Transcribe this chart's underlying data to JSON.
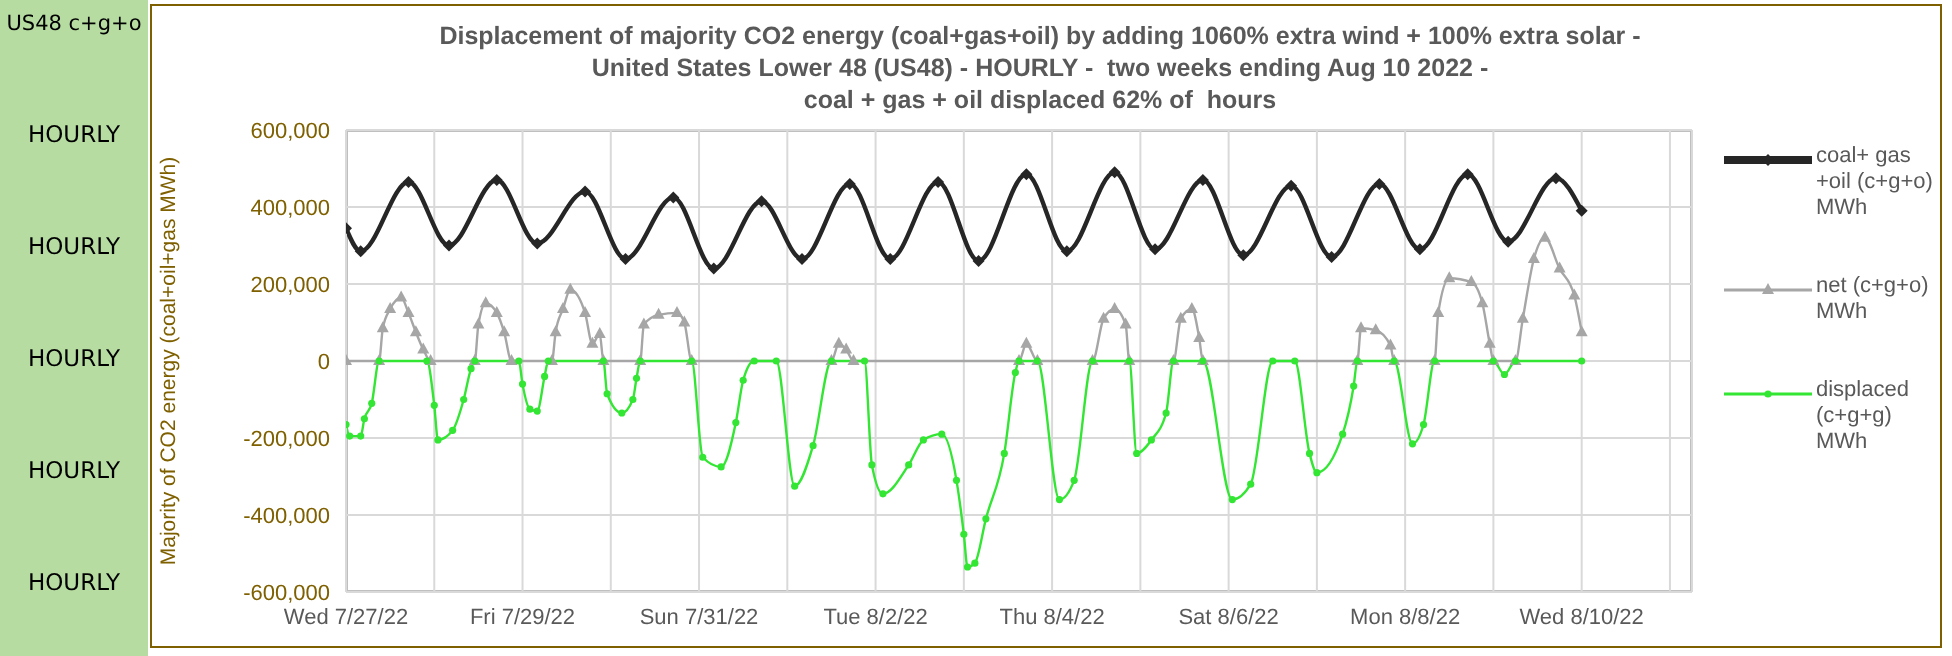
{
  "chart_data": {
    "type": "line",
    "title": "Displacement of majority CO2 energy (coal+gas+oil) by adding 1060% extra wind + 100% extra solar -\nUnited States Lower 48 (US48) - HOURLY -  two weeks ending Aug 10 2022 -\ncoal + gas + oil displaced 62% of  hours",
    "ylabel": "Majority of CO2 energy (coal+oil+gas MWh)",
    "annotations": [
      "US48 c+g+o",
      "HOURLY",
      "HOURLY",
      "HOURLY",
      "HOURLY",
      "HOURLY"
    ],
    "xlim": [
      "2022-07-27",
      "2022-08-11T06:00"
    ],
    "xticks": [
      {
        "value": "2022-07-27",
        "label": "Wed 7/27/22"
      },
      {
        "value": "2022-07-28",
        "label": null
      },
      {
        "value": "2022-07-29",
        "label": "Fri 7/29/22"
      },
      {
        "value": "2022-07-30",
        "label": null
      },
      {
        "value": "2022-07-31",
        "label": "Sun 7/31/22"
      },
      {
        "value": "2022-08-01",
        "label": null
      },
      {
        "value": "2022-08-02",
        "label": "Tue 8/2/22"
      },
      {
        "value": "2022-08-03",
        "label": null
      },
      {
        "value": "2022-08-04",
        "label": "Thu 8/4/22"
      },
      {
        "value": "2022-08-05",
        "label": null
      },
      {
        "value": "2022-08-06",
        "label": "Sat 8/6/22"
      },
      {
        "value": "2022-08-07",
        "label": null
      },
      {
        "value": "2022-08-08",
        "label": "Mon 8/8/22"
      },
      {
        "value": "2022-08-09",
        "label": null
      },
      {
        "value": "2022-08-10",
        "label": "Wed 8/10/22"
      },
      {
        "value": "2022-08-11",
        "label": null
      }
    ],
    "ylim": [
      -600000,
      600000
    ],
    "yticks": [
      {
        "value": -600000,
        "label": "-600,000"
      },
      {
        "value": -400000,
        "label": "-400,000"
      },
      {
        "value": -200000,
        "label": "-200,000"
      },
      0,
      {
        "value": 200000,
        "label": "200,000"
      },
      {
        "value": 400000,
        "label": "400,000"
      },
      {
        "value": 600000,
        "label": "600,000"
      }
    ],
    "grid": true,
    "legend": "right",
    "series": [
      {
        "name": "coal+ gas +oil (c+g+o) MWh",
        "color": "#262626",
        "marker": "diamond",
        "x": [
          "2022-07-27T00:00",
          "2022-07-27T04:00",
          "2022-07-27T17:00",
          "2022-07-28T04:00",
          "2022-07-28T17:00",
          "2022-07-29T04:00",
          "2022-07-29T17:00",
          "2022-07-30T04:00",
          "2022-07-30T17:00",
          "2022-07-31T04:00",
          "2022-07-31T17:00",
          "2022-08-01T04:00",
          "2022-08-01T17:00",
          "2022-08-02T04:00",
          "2022-08-02T17:00",
          "2022-08-03T04:00",
          "2022-08-03T17:00",
          "2022-08-04T04:00",
          "2022-08-04T17:00",
          "2022-08-05T04:00",
          "2022-08-05T17:00",
          "2022-08-06T04:00",
          "2022-08-06T17:00",
          "2022-08-07T04:00",
          "2022-08-07T17:00",
          "2022-08-08T04:00",
          "2022-08-08T17:00",
          "2022-08-09T04:00",
          "2022-08-09T17:00",
          "2022-08-10T00:00"
        ],
        "values": [
          345000,
          285000,
          465000,
          300000,
          470000,
          305000,
          440000,
          265000,
          425000,
          240000,
          415000,
          265000,
          460000,
          265000,
          465000,
          260000,
          485000,
          285000,
          490000,
          290000,
          470000,
          275000,
          455000,
          270000,
          460000,
          290000,
          485000,
          310000,
          475000,
          390000
        ]
      },
      {
        "name": "net (c+g+o) MWh",
        "color": "#a6a6a6",
        "marker": "triangle",
        "x": [
          "2022-07-27T00:00",
          "2022-07-27T09:00",
          "2022-07-27T10:00",
          "2022-07-27T12:00",
          "2022-07-27T15:00",
          "2022-07-27T17:00",
          "2022-07-27T19:00",
          "2022-07-27T21:00",
          "2022-07-27T23:00",
          "2022-07-28T11:00",
          "2022-07-28T12:00",
          "2022-07-28T14:00",
          "2022-07-28T17:00",
          "2022-07-28T19:00",
          "2022-07-28T21:00",
          "2022-07-29T08:00",
          "2022-07-29T09:00",
          "2022-07-29T11:00",
          "2022-07-29T13:00",
          "2022-07-29T17:00",
          "2022-07-29T19:00",
          "2022-07-29T21:00",
          "2022-07-29T22:00",
          "2022-07-30T08:00",
          "2022-07-30T09:00",
          "2022-07-30T13:00",
          "2022-07-30T18:00",
          "2022-07-30T20:00",
          "2022-07-30T22:00",
          "2022-08-01T12:00",
          "2022-08-01T14:00",
          "2022-08-01T16:00",
          "2022-08-01T18:00",
          "2022-08-03T15:00",
          "2022-08-03T17:00",
          "2022-08-03T20:00",
          "2022-08-04T11:00",
          "2022-08-04T14:00",
          "2022-08-04T17:00",
          "2022-08-04T20:00",
          "2022-08-04T21:00",
          "2022-08-05T09:00",
          "2022-08-05T11:00",
          "2022-08-05T14:00",
          "2022-08-05T16:00",
          "2022-08-05T17:00",
          "2022-08-07T11:00",
          "2022-08-07T12:00",
          "2022-08-07T16:00",
          "2022-08-07T20:00",
          "2022-08-07T21:00",
          "2022-08-08T08:00",
          "2022-08-08T09:00",
          "2022-08-08T12:00",
          "2022-08-08T18:00",
          "2022-08-08T21:00",
          "2022-08-08T23:00",
          "2022-08-09T00:00",
          "2022-08-09T06:00",
          "2022-08-09T08:00",
          "2022-08-09T11:00",
          "2022-08-09T14:00",
          "2022-08-09T18:00",
          "2022-08-09T22:00",
          "2022-08-10T00:00"
        ],
        "values": [
          0,
          0,
          85000,
          135000,
          165000,
          125000,
          75000,
          30000,
          0,
          0,
          95000,
          150000,
          125000,
          75000,
          0,
          0,
          75000,
          135000,
          185000,
          125000,
          45000,
          70000,
          0,
          0,
          95000,
          120000,
          125000,
          100000,
          0,
          0,
          45000,
          30000,
          0,
          0,
          45000,
          0,
          0,
          110000,
          135000,
          95000,
          0,
          0,
          110000,
          135000,
          60000,
          0,
          0,
          85000,
          80000,
          40000,
          0,
          0,
          125000,
          215000,
          205000,
          150000,
          45000,
          0,
          0,
          110000,
          265000,
          320000,
          240000,
          170000,
          75000
        ]
      },
      {
        "name": "displaced (c+g+g) MWh",
        "color": "#33e633",
        "marker": "circle",
        "x": [
          "2022-07-27T00:00",
          "2022-07-27T01:00",
          "2022-07-27T04:00",
          "2022-07-27T05:00",
          "2022-07-27T07:00",
          "2022-07-27T09:00",
          "2022-07-27T22:00",
          "2022-07-28T00:00",
          "2022-07-28T01:00",
          "2022-07-28T05:00",
          "2022-07-28T08:00",
          "2022-07-28T10:00",
          "2022-07-28T11:00",
          "2022-07-28T23:00",
          "2022-07-29T00:00",
          "2022-07-29T02:00",
          "2022-07-29T04:00",
          "2022-07-29T06:00",
          "2022-07-29T07:00",
          "2022-07-29T22:00",
          "2022-07-29T23:00",
          "2022-07-30T03:00",
          "2022-07-30T06:00",
          "2022-07-30T07:00",
          "2022-07-30T08:00",
          "2022-07-30T22:00",
          "2022-07-31T01:00",
          "2022-07-31T06:00",
          "2022-07-31T10:00",
          "2022-07-31T12:00",
          "2022-07-31T15:00",
          "2022-07-31T21:00",
          "2022-08-01T02:00",
          "2022-08-01T07:00",
          "2022-08-01T12:00",
          "2022-08-01T21:00",
          "2022-08-01T23:00",
          "2022-08-02T02:00",
          "2022-08-02T09:00",
          "2022-08-02T13:00",
          "2022-08-02T18:00",
          "2022-08-02T22:00",
          "2022-08-03T00:00",
          "2022-08-03T01:00",
          "2022-08-03T03:00",
          "2022-08-03T06:00",
          "2022-08-03T11:00",
          "2022-08-03T14:00",
          "2022-08-03T15:00",
          "2022-08-03T20:00",
          "2022-08-04T02:00",
          "2022-08-04T06:00",
          "2022-08-04T11:00",
          "2022-08-04T21:00",
          "2022-08-04T23:00",
          "2022-08-05T03:00",
          "2022-08-05T07:00",
          "2022-08-05T09:00",
          "2022-08-05T17:00",
          "2022-08-06T01:00",
          "2022-08-06T06:00",
          "2022-08-06T12:00",
          "2022-08-06T18:00",
          "2022-08-06T22:00",
          "2022-08-07T00:00",
          "2022-08-07T07:00",
          "2022-08-07T10:00",
          "2022-08-07T11:00",
          "2022-08-07T21:00",
          "2022-08-08T02:00",
          "2022-08-08T05:00",
          "2022-08-08T08:00",
          "2022-08-09T00:00",
          "2022-08-09T03:00",
          "2022-08-09T06:00",
          "2022-08-10T00:00"
        ],
        "values": [
          -165000,
          -195000,
          -195000,
          -150000,
          -110000,
          0,
          0,
          -115000,
          -205000,
          -180000,
          -100000,
          -20000,
          0,
          0,
          -60000,
          -125000,
          -130000,
          -40000,
          0,
          0,
          -85000,
          -135000,
          -100000,
          -45000,
          0,
          0,
          -250000,
          -275000,
          -160000,
          -50000,
          0,
          0,
          -325000,
          -220000,
          0,
          0,
          -270000,
          -345000,
          -270000,
          -205000,
          -190000,
          -310000,
          -450000,
          -535000,
          -525000,
          -410000,
          -240000,
          -30000,
          0,
          0,
          -360000,
          -310000,
          0,
          0,
          -240000,
          -205000,
          -135000,
          0,
          0,
          -360000,
          -320000,
          0,
          0,
          -240000,
          -290000,
          -190000,
          -65000,
          0,
          0,
          -215000,
          -165000,
          0,
          0,
          -35000,
          0,
          0
        ]
      }
    ]
  }
}
